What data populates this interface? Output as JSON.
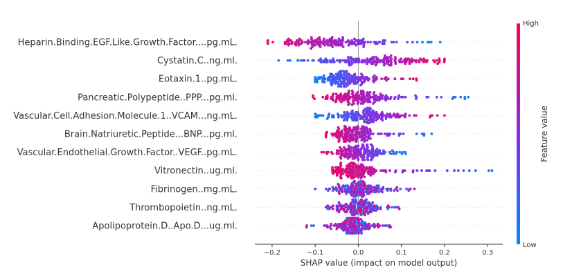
{
  "chart_data": {
    "type": "scatter",
    "title": "",
    "xlabel": "SHAP value (impact on model output)",
    "ylabel": "",
    "xlim": [
      -0.24,
      0.335
    ],
    "xticks": [
      -0.2,
      -0.1,
      0.0,
      0.1,
      0.2,
      0.3
    ],
    "xtick_labels": [
      "−0.2",
      "−0.1",
      "0.0",
      "0.1",
      "0.2",
      "0.3"
    ],
    "colorbar": {
      "label": "Feature value",
      "high": "High",
      "low": "Low",
      "low_color": "#008afb",
      "mid_color": "#8a2be2",
      "high_color": "#ff0052"
    },
    "features": [
      {
        "name": "Heparin.Binding.EGF.Like.Growth.Factor....pg.mL.",
        "min": -0.21,
        "max": 0.19,
        "low_side": "positive",
        "spread": 0.07,
        "center": -0.07
      },
      {
        "name": "Cystatin.C..ng.ml.",
        "min": -0.185,
        "max": 0.2,
        "low_side": "negative",
        "spread": 0.07,
        "center": 0.03
      },
      {
        "name": "Eotaxin.1..pg.mL.",
        "min": -0.1,
        "max": 0.135,
        "low_side": "negative",
        "spread": 0.04,
        "center": -0.03
      },
      {
        "name": "Pancreatic.Polypeptide..PPP...pg.ml.",
        "min": -0.105,
        "max": 0.255,
        "low_side": "positive",
        "spread": 0.04,
        "center": 0.0
      },
      {
        "name": "Vascular.Cell.Adhesion.Molecule.1..VCAM...ng.mL.",
        "min": -0.1,
        "max": 0.2,
        "low_side": "negative",
        "spread": 0.04,
        "center": 0.01
      },
      {
        "name": "Brain.Natriuretic.Peptide...BNP...pg.ml.",
        "min": -0.075,
        "max": 0.17,
        "low_side": "positive",
        "spread": 0.03,
        "center": -0.01
      },
      {
        "name": "Vascular.Endothelial.Growth.Factor..VEGF..pg.mL.",
        "min": -0.085,
        "max": 0.11,
        "low_side": "positive",
        "spread": 0.03,
        "center": 0.0
      },
      {
        "name": "Vitronectin..ug.ml.",
        "min": -0.06,
        "max": 0.31,
        "low_side": "positive",
        "spread": 0.025,
        "center": -0.01
      },
      {
        "name": "Fibrinogen..mg.mL.",
        "min": -0.1,
        "max": 0.13,
        "low_side": "mixed",
        "spread": 0.025,
        "center": 0.0
      },
      {
        "name": "Thrombopoietin..ng.mL.",
        "min": -0.075,
        "max": 0.095,
        "low_side": "mixed",
        "spread": 0.025,
        "center": 0.0
      },
      {
        "name": "Apolipoprotein.D..Apo.D...ug.ml.",
        "min": -0.12,
        "max": 0.075,
        "low_side": "mixed",
        "spread": 0.02,
        "center": -0.01
      }
    ]
  }
}
